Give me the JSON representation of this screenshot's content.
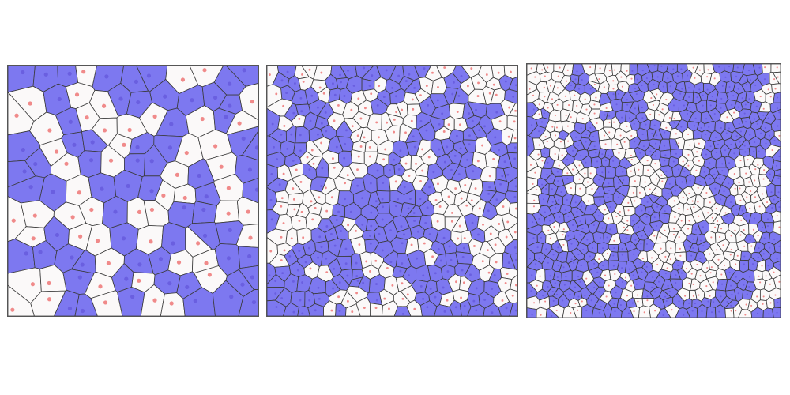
{
  "colors": {
    "background": "#ffffff",
    "cell_filled": "#7d78f0",
    "cell_empty": "#fbf9f9",
    "cell_edge": "#3a3a3a",
    "site_on_filled": "#6a5fe0",
    "site_on_empty": "#f08a8a",
    "frame": "#555555"
  },
  "panels": [
    {
      "label": "",
      "cells_per_side": 11,
      "filled_fraction": 0.55
    },
    {
      "label": "",
      "cells_per_side": 20,
      "filled_fraction": 0.56
    },
    {
      "label": "",
      "cells_per_side": 27,
      "filled_fraction": 0.58
    }
  ]
}
